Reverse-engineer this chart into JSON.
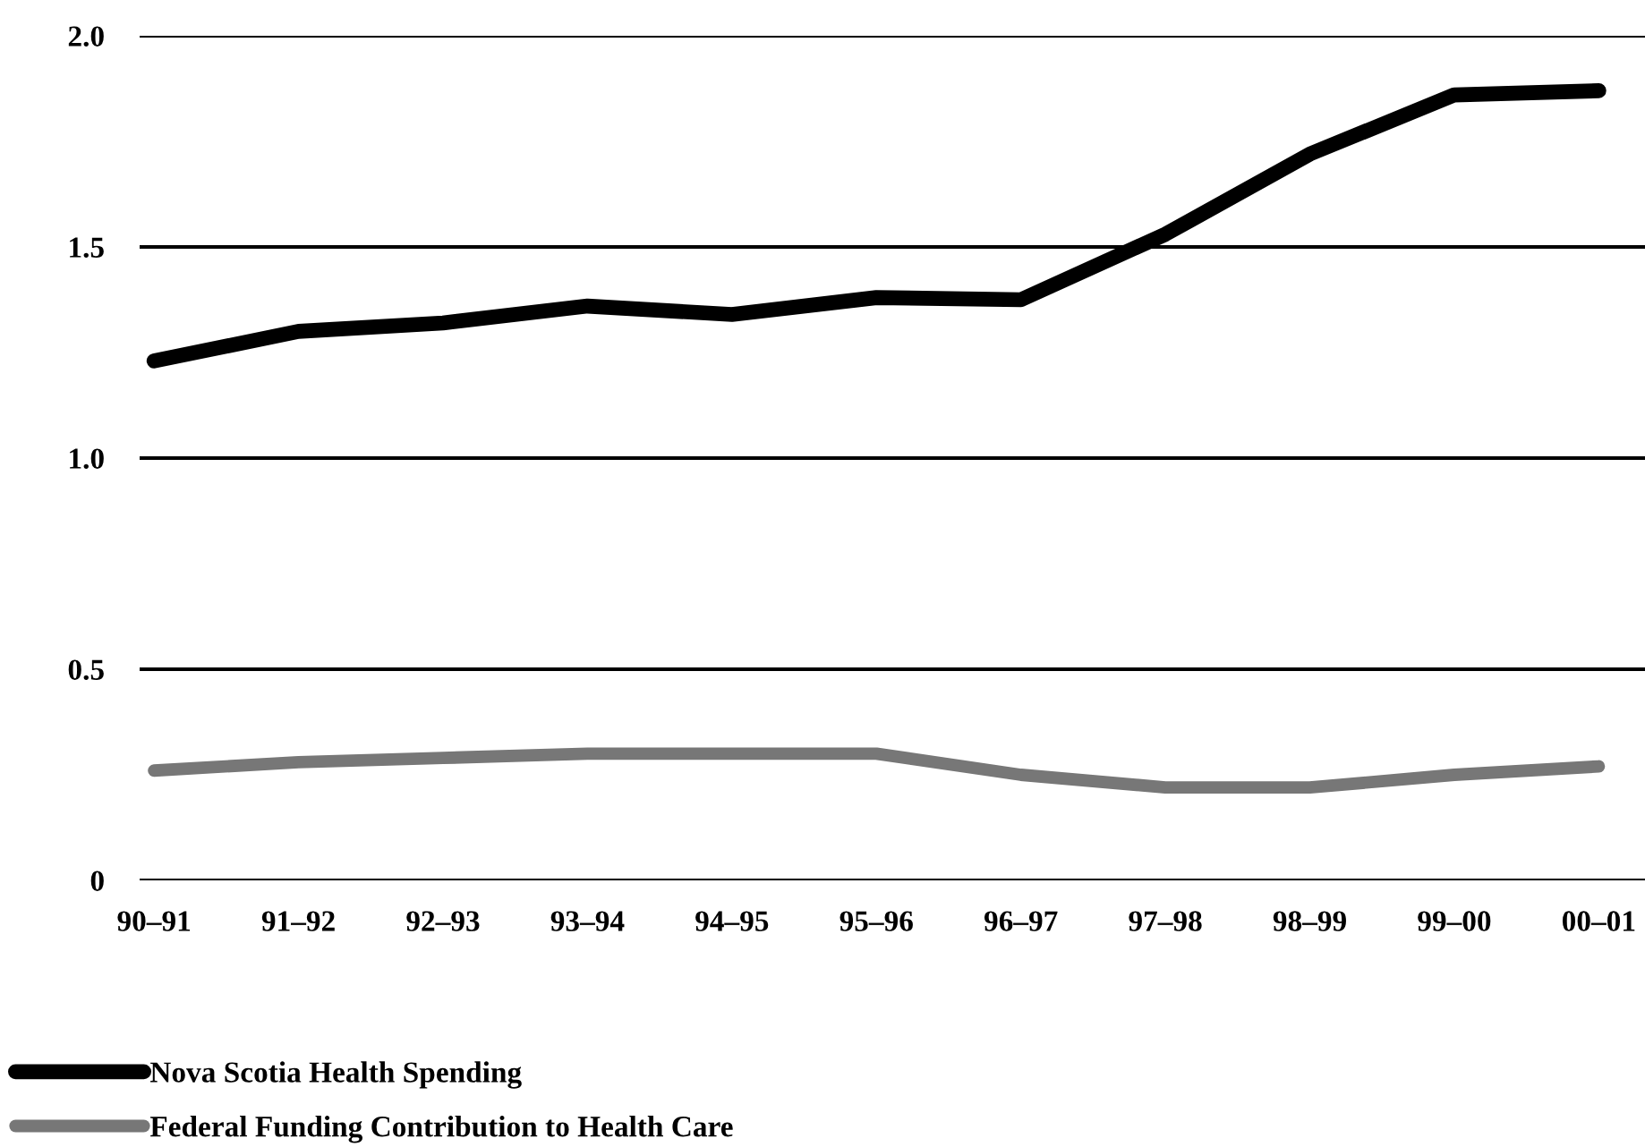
{
  "chart_data": {
    "type": "line",
    "categories": [
      "90–91",
      "91–92",
      "92–93",
      "93–94",
      "94–95",
      "95–96",
      "96–97",
      "97–98",
      "98–99",
      "99–00",
      "00–01"
    ],
    "series": [
      {
        "name": "Nova Scotia Health Spending",
        "color": "#000000",
        "values": [
          1.23,
          1.3,
          1.32,
          1.36,
          1.34,
          1.38,
          1.375,
          1.53,
          1.72,
          1.86,
          1.87
        ]
      },
      {
        "name": "Federal Funding Contribution to Health Care",
        "color": "#777777",
        "values": [
          0.26,
          0.28,
          0.29,
          0.3,
          0.3,
          0.3,
          0.25,
          0.22,
          0.22,
          0.25,
          0.27
        ]
      }
    ],
    "ylim": [
      0,
      2.0
    ],
    "yticks": [
      {
        "value": 0,
        "label": "0"
      },
      {
        "value": 0.5,
        "label": "0.5"
      },
      {
        "value": 1.0,
        "label": "1.0"
      },
      {
        "value": 1.5,
        "label": "1.5"
      },
      {
        "value": 2.0,
        "label": "2.0"
      }
    ],
    "grid": "y",
    "legend": "bottom left",
    "marker": "none",
    "line_style": "solid"
  }
}
